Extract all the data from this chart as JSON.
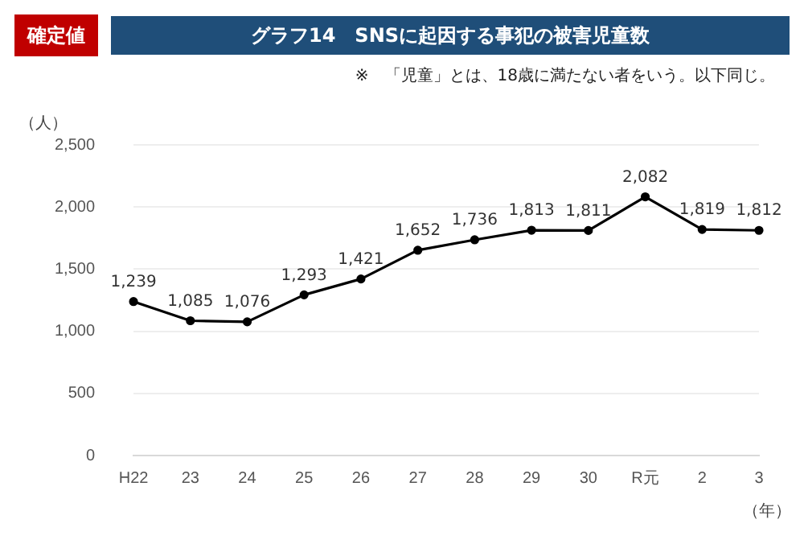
{
  "chart_data": {
    "type": "line",
    "title": "グラフ14　SNSに起因する事犯の被害児童数",
    "annotations": [
      "確定値",
      "※　「児童」とは、18歳に満たない者をいう。以下同じ。"
    ],
    "ylabel": "（人）",
    "xlabel": "（年）",
    "categories": [
      "H22",
      "23",
      "24",
      "25",
      "26",
      "27",
      "28",
      "29",
      "30",
      "R元",
      "2",
      "3"
    ],
    "series": [
      {
        "color": "#000000",
        "values": [
          1239,
          1085,
          1076,
          1293,
          1421,
          1652,
          1736,
          1813,
          1811,
          2082,
          1819,
          1812
        ],
        "value_labels": [
          "1,239",
          "1,085",
          "1,076",
          "1,293",
          "1,421",
          "1,652",
          "1,736",
          "1,813",
          "1,811",
          "2,082",
          "1,819",
          "1,812"
        ]
      }
    ],
    "ylim": [
      0,
      2500
    ],
    "yticks": [
      0,
      {
        "value": 500,
        "label": "500"
      },
      {
        "value": 1000,
        "label": "1,000"
      },
      {
        "value": 1500,
        "label": "1,500"
      },
      {
        "value": 2000,
        "label": "2,000"
      },
      {
        "value": 2500,
        "label": "2,500"
      }
    ],
    "grid": "y",
    "marker": "circle",
    "line_style": "solid",
    "legend": false
  }
}
